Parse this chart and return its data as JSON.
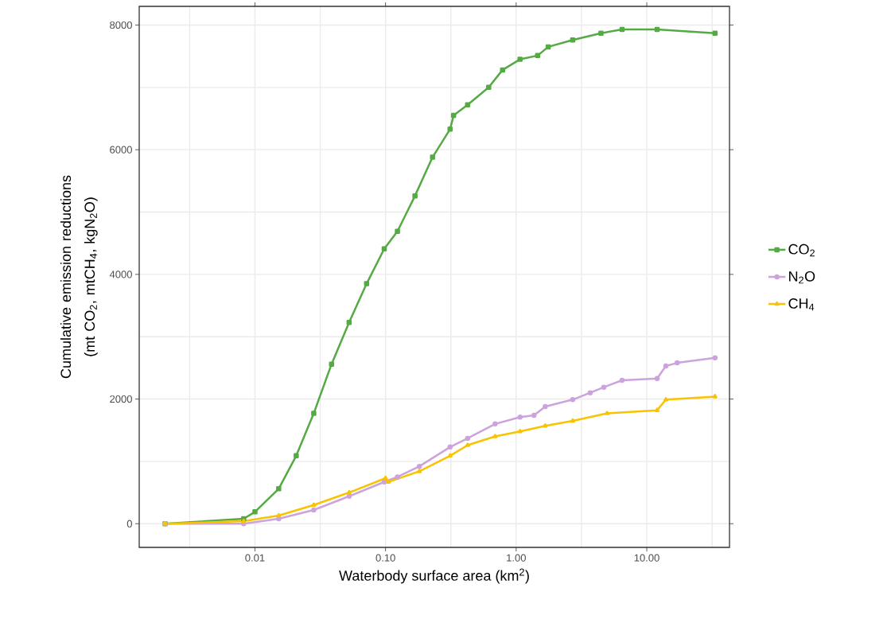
{
  "chart_data": {
    "type": "line",
    "xlabel": "Waterbody surface area (km$^{2}$)",
    "ylabel": "Cumulative emission reductions (mt CO$_{2}$,  mtCH$_{4}$,  kgN$_{2}$O)",
    "log": "x",
    "xlim": [
      0.0013,
      43
    ],
    "ylim": [
      -380,
      8300
    ],
    "xticks": [
      0.01,
      {
        "value": 0.1,
        "label": "0.10"
      },
      {
        "value": 1,
        "label": "1.00"
      },
      {
        "value": 10,
        "label": "10.00"
      }
    ],
    "yticks": [
      0,
      2000,
      4000,
      6000,
      8000
    ],
    "grid": true,
    "legend": "right",
    "line_style": "solid",
    "series": [
      {
        "name": "CO$_{2}$",
        "color": "#55aa44",
        "marker": "square",
        "x": [
          0.00205,
          0.0082,
          0.01,
          0.0152,
          0.0207,
          0.0282,
          0.0386,
          0.0526,
          0.0716,
          0.0977,
          0.1233,
          0.168,
          0.229,
          0.312,
          0.332,
          0.425,
          0.616,
          0.787,
          1.07,
          1.46,
          1.76,
          2.71,
          4.46,
          6.47,
          12.0,
          33.3
        ],
        "values": [
          0,
          80,
          190,
          560,
          1090,
          1770,
          2560,
          3230,
          3850,
          4410,
          4690,
          5260,
          5880,
          6330,
          6550,
          6720,
          7000,
          7280,
          7450,
          7510,
          7650,
          7760,
          7870,
          7930,
          7930,
          7870
        ]
      },
      {
        "name": "N$_{2}$O",
        "color": "#cca3dd",
        "marker": "circle",
        "x": [
          0.00205,
          0.0082,
          0.0152,
          0.0282,
          0.0526,
          0.0977,
          0.1233,
          0.1815,
          0.312,
          0.425,
          0.69,
          1.07,
          1.37,
          1.67,
          2.71,
          3.69,
          4.69,
          6.47,
          12.0,
          14.0,
          17.1,
          33.3
        ],
        "values": [
          0,
          0,
          80,
          220,
          440,
          670,
          750,
          920,
          1230,
          1370,
          1600,
          1710,
          1740,
          1880,
          1990,
          2100,
          2190,
          2300,
          2330,
          2530,
          2580,
          2660
        ]
      },
      {
        "name": "CH$_{4}$",
        "color": "#f8c300",
        "marker": "triangle",
        "x": [
          0.00205,
          0.0082,
          0.0152,
          0.0282,
          0.0526,
          0.1,
          0.105,
          0.1815,
          0.312,
          0.425,
          0.69,
          1.07,
          1.67,
          2.71,
          4.97,
          12.0,
          14.0,
          33.3
        ],
        "values": [
          0,
          40,
          130,
          300,
          500,
          730,
          670,
          840,
          1090,
          1260,
          1400,
          1480,
          1570,
          1650,
          1770,
          1820,
          1990,
          2040
        ]
      }
    ]
  }
}
